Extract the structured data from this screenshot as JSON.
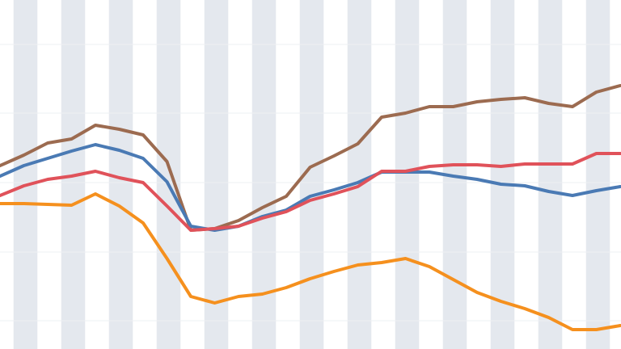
{
  "chart_data": {
    "type": "line",
    "categories": [
      null,
      null,
      null,
      null,
      null,
      null,
      null,
      null,
      null,
      null,
      null,
      null,
      null,
      null,
      null,
      null,
      null,
      null,
      null,
      null,
      null,
      null,
      null,
      null,
      null,
      null,
      null
    ],
    "ylim": [
      0,
      432
    ],
    "yticks": [
      35,
      120,
      206,
      292,
      377
    ],
    "grid": true,
    "series": [
      {
        "color": "#9c6b50",
        "values": [
          227,
          240,
          255,
          260,
          277,
          272,
          265,
          232,
          147,
          149,
          159,
          175,
          189,
          225,
          239,
          254,
          287,
          292,
          300,
          300,
          306,
          309,
          311,
          304,
          300,
          318,
          326
        ]
      },
      {
        "color": "#4a7ab4",
        "values": [
          214,
          227,
          236,
          245,
          253,
          246,
          236,
          207,
          152,
          147,
          152,
          164,
          172,
          189,
          197,
          206,
          219,
          219,
          219,
          214,
          210,
          204,
          202,
          195,
          190,
          196,
          201
        ]
      },
      {
        "color": "#e0525a",
        "values": [
          190,
          202,
          210,
          214,
          220,
          212,
          206,
          177,
          147,
          149,
          152,
          162,
          170,
          184,
          192,
          201,
          220,
          220,
          226,
          228,
          228,
          226,
          229,
          229,
          229,
          242,
          242
        ]
      },
      {
        "color": "#f5901e",
        "values": [
          180,
          180,
          179,
          178,
          192,
          177,
          156,
          112,
          65,
          57,
          65,
          68,
          76,
          87,
          96,
          104,
          107,
          112,
          102,
          86,
          70,
          59,
          50,
          39,
          24,
          24,
          29
        ]
      }
    ]
  }
}
